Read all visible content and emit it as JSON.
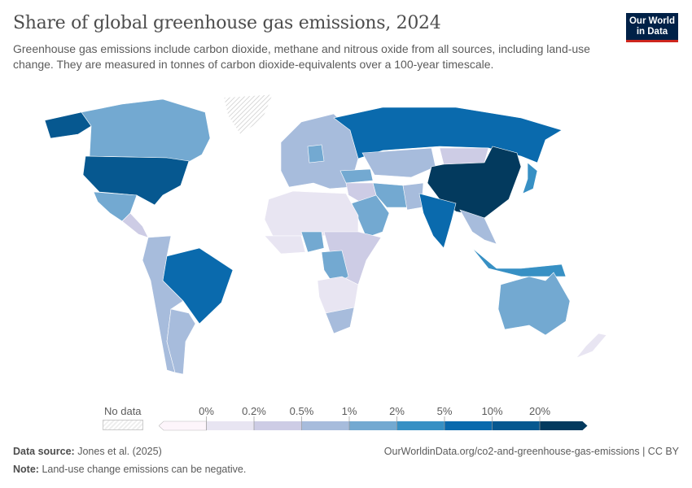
{
  "title": "Share of global greenhouse gas emissions, 2024",
  "subtitle": "Greenhouse gas emissions include carbon dioxide, methane and nitrous oxide from all sources, including land-use change. They are measured in tonnes of carbon dioxide-equivalents over a 100-year timescale.",
  "logo": {
    "line1": "Our World",
    "line2": "in Data",
    "bg": "#002147",
    "accent": "#ce261e"
  },
  "legend": {
    "no_data": "No data",
    "ticks": [
      "0%",
      "0.2%",
      "0.5%",
      "1%",
      "2%",
      "5%",
      "10%",
      "20%"
    ],
    "colors": [
      "#fdf5fb",
      "#e8e5f2",
      "#cdcce5",
      "#a7bcdc",
      "#73a9d1",
      "#3790c4",
      "#0a6aad",
      "#065890",
      "#033a5e"
    ]
  },
  "countries": {
    "canada": 4,
    "usa": 7,
    "mexico": 4,
    "greenland": -1,
    "central-america": 2,
    "south-america": 3,
    "brazil": 6,
    "argentina": 3,
    "north-africa": 1,
    "west-africa": 1,
    "nigeria": 4,
    "drc": 4,
    "east-africa": 2,
    "southern-africa": 1,
    "south-africa": 3,
    "europe": 3,
    "germany": 4,
    "russia": 6,
    "kazakhstan": 3,
    "middle-east": 2,
    "saudi-arabia": 4,
    "iran": 4,
    "turkey": 4,
    "china": 8,
    "mongolia": 2,
    "india": 6,
    "southeast-asia": 3,
    "indonesia": 5,
    "japan": 5,
    "australia": 4,
    "new-zealand": 1,
    "pakistan": 3
  },
  "footer": {
    "source_label": "Data source:",
    "source": "Jones et al. (2025)",
    "note_label": "Note:",
    "note": "Land-use change emissions can be negative.",
    "url": "OurWorldinData.org/co2-and-greenhouse-gas-emissions | CC BY"
  }
}
